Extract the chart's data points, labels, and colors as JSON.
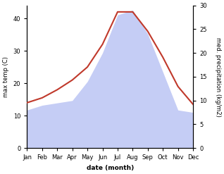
{
  "months": [
    "Jan",
    "Feb",
    "Mar",
    "Apr",
    "May",
    "Jun",
    "Jul",
    "Aug",
    "Sep",
    "Oct",
    "Nov",
    "Dec"
  ],
  "max_temp": [
    14.0,
    15.5,
    18.0,
    21.0,
    25.0,
    32.0,
    42.0,
    42.0,
    36.0,
    28.0,
    19.0,
    13.5
  ],
  "precipitation": [
    8.0,
    9.0,
    9.5,
    10.0,
    14.0,
    20.0,
    28.0,
    29.0,
    24.0,
    16.0,
    8.0,
    7.5
  ],
  "temp_color": "#c0392b",
  "precip_fill_color": "#c5cdf5",
  "temp_ylim": [
    0,
    44
  ],
  "precip_ylim": [
    0,
    30
  ],
  "temp_yticks": [
    0,
    10,
    20,
    30,
    40
  ],
  "precip_yticks": [
    0,
    5,
    10,
    15,
    20,
    25,
    30
  ],
  "ylabel_left": "max temp (C)",
  "ylabel_right": "med. precipitation (kg/m2)",
  "xlabel": "date (month)",
  "fig_width": 3.18,
  "fig_height": 2.47,
  "dpi": 100
}
